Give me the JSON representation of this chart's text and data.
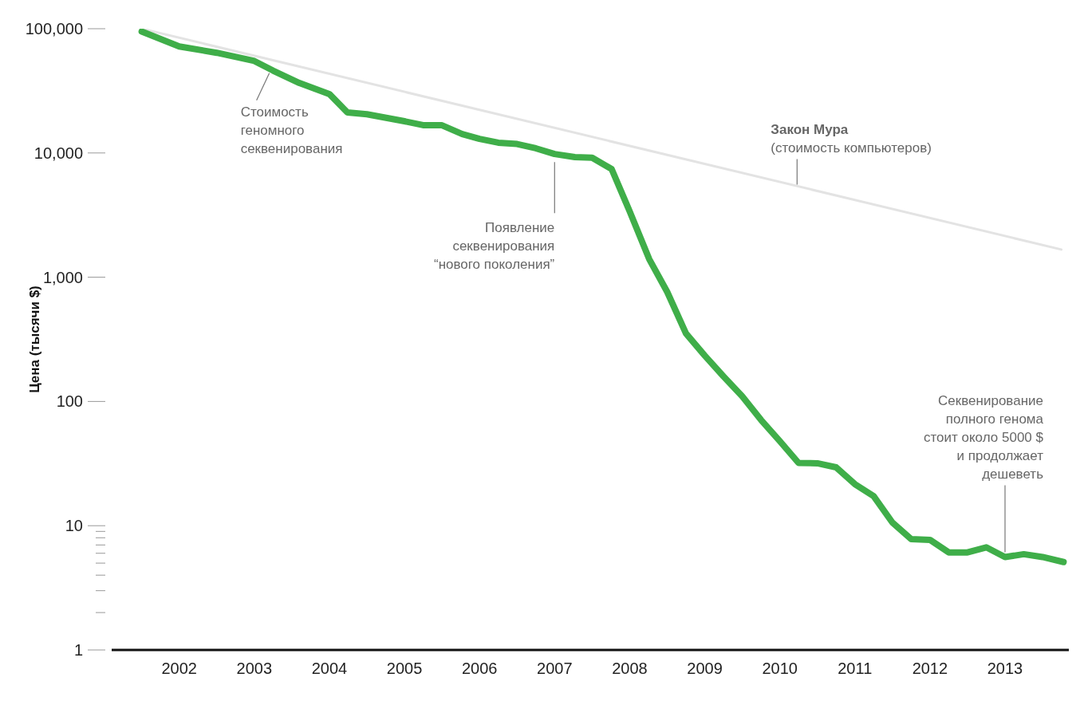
{
  "chart_data": {
    "type": "line",
    "ylabel": "Цена (тысячи $)",
    "log": "y",
    "grid": false,
    "legend": false,
    "marker": "none",
    "line_style": "solid",
    "xlim": [
      2001.1,
      2013.85
    ],
    "xticks": [
      2002,
      2003,
      2004,
      2005,
      2006,
      2007,
      2008,
      2009,
      2010,
      2011,
      2012,
      2013
    ],
    "ylim": [
      1,
      100000
    ],
    "yticks": [
      1,
      {
        "value": 2,
        "label": null
      },
      {
        "value": 3,
        "label": null
      },
      {
        "value": 4,
        "label": null
      },
      {
        "value": 5,
        "label": null
      },
      {
        "value": 6,
        "label": null
      },
      {
        "value": 7,
        "label": null
      },
      {
        "value": 8,
        "label": null
      },
      {
        "value": 9,
        "label": null
      },
      10,
      100,
      {
        "value": 1000,
        "label": "1,000"
      },
      {
        "value": 10000,
        "label": "10,000"
      },
      {
        "value": 100000,
        "label": "100,000"
      }
    ],
    "series": [
      {
        "color": "#e3e3e3",
        "x": [
          2001.5,
          2013.75
        ],
        "values": [
          100000,
          1670
        ]
      },
      {
        "color": "#3fae49",
        "x": [
          2001.5,
          2002,
          2002.5,
          2003,
          2003.25,
          2003.6,
          2004,
          2004.24,
          2004.5,
          2005,
          2005.26,
          2005.5,
          2005.77,
          2006,
          2006.25,
          2006.5,
          2006.75,
          2007,
          2007.27,
          2007.5,
          2007.76,
          2008,
          2008.26,
          2008.5,
          2008.75,
          2009,
          2009.25,
          2009.5,
          2009.75,
          2010,
          2010.25,
          2010.5,
          2010.75,
          2011,
          2011.25,
          2011.5,
          2011.75,
          2012,
          2012.25,
          2012.5,
          2012.75,
          2013,
          2013.25,
          2013.5,
          2013.78
        ],
        "values": [
          95000,
          72000,
          64000,
          55000,
          46000,
          36600,
          29800,
          21200,
          20500,
          18000,
          16700,
          16700,
          14200,
          13000,
          12100,
          11800,
          10900,
          9800,
          9270,
          9150,
          7420,
          3390,
          1400,
          762,
          353,
          234,
          159,
          110,
          71,
          48,
          32,
          31.8,
          29.5,
          21.6,
          17.3,
          10.6,
          7.8,
          7.7,
          6.1,
          6.1,
          6.7,
          5.6,
          5.9,
          5.6,
          5.1
        ]
      }
    ],
    "annotations": [
      {
        "text": "Стоимость\nгеномного\nсеквенирования",
        "x": 2003.2,
        "y": 48000
      },
      {
        "text": "Появление\nсеквенирования\n“нового поколения”",
        "x": 2007,
        "y": 9500
      },
      "Закон Мура",
      {
        "text": "(стоимость компьютеров)",
        "x": 2010.23,
        "y": 5400
      },
      {
        "text": "Секвенирование\nполного генома\nстоит около 5000 $\nи продолжает\nдешеветь",
        "x": 2013,
        "y": 5.6
      }
    ]
  }
}
